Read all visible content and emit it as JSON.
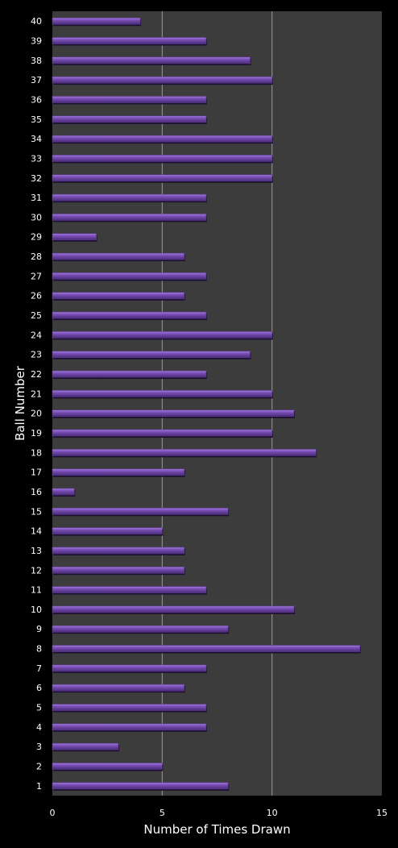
{
  "chart_data": {
    "type": "bar",
    "orientation": "horizontal",
    "title": "",
    "xlabel": "Number of Times Drawn",
    "ylabel": "Ball Number",
    "xlim": [
      0,
      15
    ],
    "xticks": [
      0,
      5,
      10,
      15
    ],
    "grid": true,
    "colors": {
      "background": "#000000",
      "plot_area": "#3c3c3c",
      "bar": "#7b4fb8",
      "bar_highlight": "#a27ddb",
      "bar_shadow": "#4a2c78",
      "gridline": "#9a9a9a",
      "text": "#ffffff"
    },
    "categories": [
      "1",
      "2",
      "3",
      "4",
      "5",
      "6",
      "7",
      "8",
      "9",
      "10",
      "11",
      "12",
      "13",
      "14",
      "15",
      "16",
      "17",
      "18",
      "19",
      "20",
      "21",
      "22",
      "23",
      "24",
      "25",
      "26",
      "27",
      "28",
      "29",
      "30",
      "31",
      "32",
      "33",
      "34",
      "35",
      "36",
      "37",
      "38",
      "39",
      "40"
    ],
    "values": [
      8,
      5,
      3,
      7,
      7,
      6,
      7,
      14,
      8,
      11,
      7,
      6,
      6,
      5,
      8,
      1,
      6,
      12,
      10,
      11,
      10,
      7,
      9,
      10,
      7,
      6,
      7,
      6,
      2,
      7,
      7,
      10,
      10,
      10,
      7,
      7,
      10,
      9,
      7,
      4
    ]
  }
}
